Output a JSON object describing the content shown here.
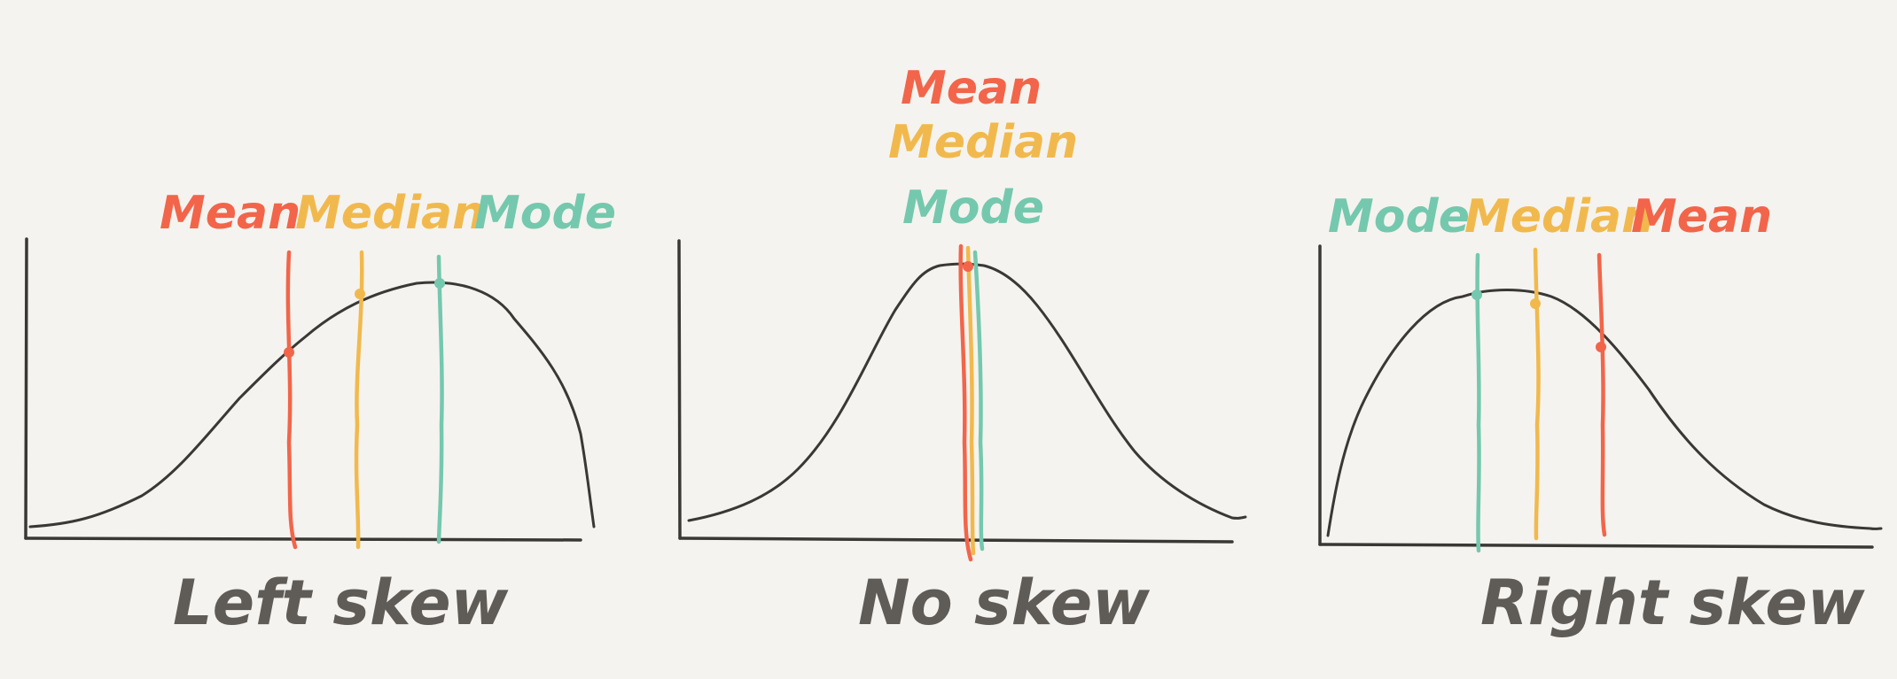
{
  "colors": {
    "background": "#f5f3ef",
    "ink": "#3a3835",
    "caption": "#5f5c58",
    "mean": "#f2654a",
    "median": "#f1b94d",
    "mode": "#74c8ae"
  },
  "panels": [
    {
      "caption": "Left skew",
      "skew": "left",
      "labels": {
        "mean": "Mean",
        "median": "Median",
        "mode": "Mode"
      },
      "label_order": [
        "mean",
        "median",
        "mode"
      ],
      "label_layout": "row"
    },
    {
      "caption": "No skew",
      "skew": "none",
      "labels": {
        "mean": "Mean",
        "median": "Median",
        "mode": "Mode"
      },
      "label_order": [
        "mean",
        "median",
        "mode"
      ],
      "label_layout": "stacked"
    },
    {
      "caption": "Right skew",
      "skew": "right",
      "labels": {
        "mode": "Mode",
        "median": "Median",
        "mean": "Mean"
      },
      "label_order": [
        "mode",
        "median",
        "mean"
      ],
      "label_layout": "row"
    }
  ]
}
